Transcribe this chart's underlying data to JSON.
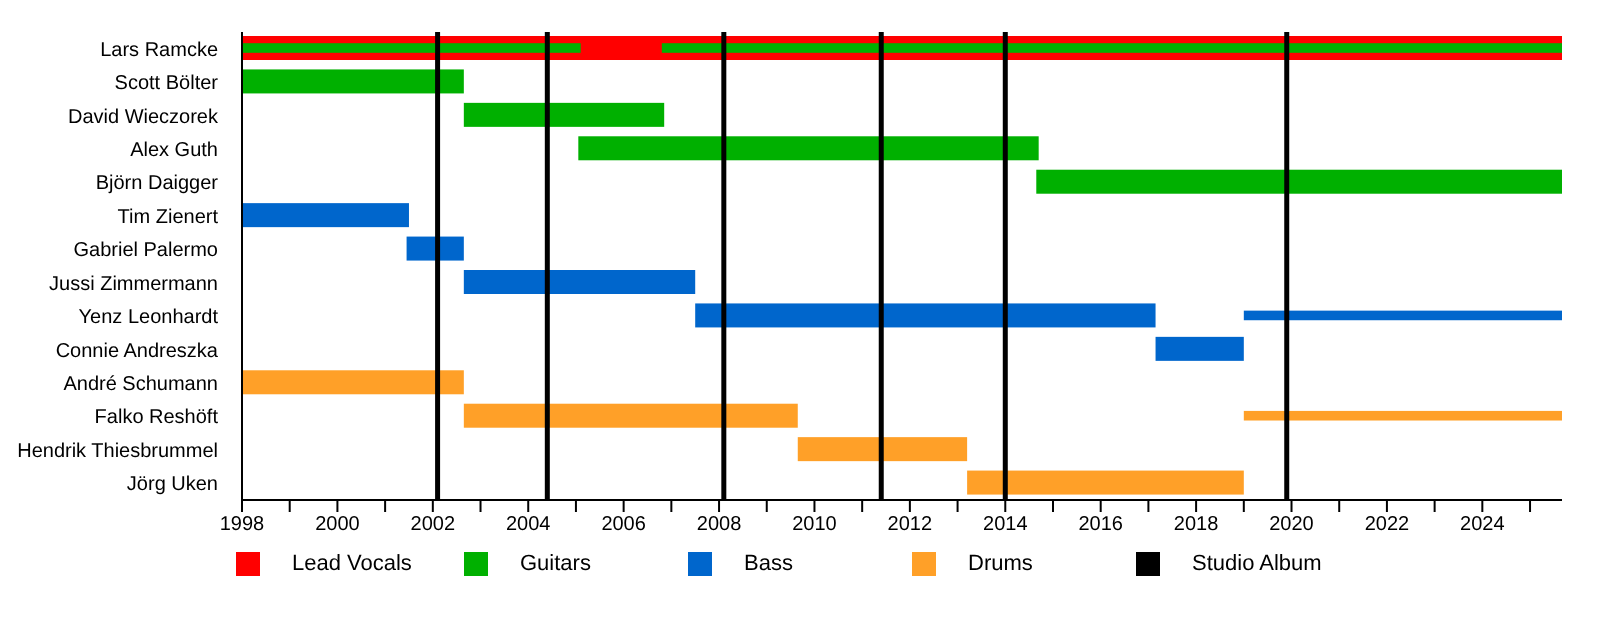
{
  "chart_data": {
    "type": "bar",
    "orientation": "horizontal",
    "categories": [
      "Lars Ramcke",
      "Scott Bölter",
      "David Wieczorek",
      "Alex Guth",
      "Björn Daigger",
      "Tim Zienert",
      "Gabriel Palermo",
      "Jussi Zimmermann",
      "Yenz Leonhardt",
      "Connie Andreszka",
      "André Schumann",
      "Falko Reshöft",
      "Hendrik Thiesbrummel",
      "Jörg Uken"
    ],
    "series": [
      {
        "name": "Lead Vocals",
        "color": "#ff0000",
        "base": [
          1998,
          null,
          null,
          null,
          null,
          null,
          null,
          null,
          null,
          null,
          null,
          null,
          null,
          null
        ],
        "values": [
          27.67,
          null,
          null,
          null,
          null,
          null,
          null,
          null,
          null,
          null,
          null,
          null,
          null,
          null
        ]
      },
      {
        "name": "Guitars",
        "color": "#00b000",
        "base": [
          1998,
          1998,
          2002.65,
          2005.05,
          2014.65,
          null,
          null,
          null,
          null,
          null,
          null,
          null,
          null,
          null
        ],
        "values": [
          7.1,
          4.65,
          4.2,
          9.65,
          11.02,
          null,
          null,
          null,
          null,
          null,
          null,
          null,
          null,
          null
        ]
      },
      {
        "color": "#00b000",
        "base": [
          2006.8,
          null,
          null,
          null,
          null,
          null,
          null,
          null,
          null,
          null,
          null,
          null,
          null,
          null
        ],
        "values": [
          18.87,
          null,
          null,
          null,
          null,
          null,
          null,
          null,
          null,
          null,
          null,
          null,
          null,
          null
        ]
      },
      {
        "name": "Bass",
        "color": "#0066cc",
        "base": [
          null,
          null,
          null,
          null,
          null,
          1998,
          2001.45,
          2002.65,
          2007.5,
          2017.15,
          null,
          null,
          null,
          null
        ],
        "values": [
          null,
          null,
          null,
          null,
          null,
          3.5,
          1.2,
          4.85,
          9.65,
          1.85,
          null,
          null,
          null,
          null
        ]
      },
      {
        "color": "#0066cc",
        "base": [
          null,
          null,
          null,
          null,
          null,
          null,
          null,
          null,
          2019,
          null,
          null,
          null,
          null,
          null
        ],
        "values": [
          null,
          null,
          null,
          null,
          null,
          null,
          null,
          null,
          6.67,
          null,
          null,
          null,
          null,
          null
        ]
      },
      {
        "name": "Drums",
        "color": "#ffa028",
        "base": [
          null,
          null,
          null,
          null,
          null,
          null,
          null,
          null,
          null,
          null,
          1998,
          2002.65,
          2009.65,
          2013.2
        ],
        "values": [
          null,
          null,
          null,
          null,
          null,
          null,
          null,
          null,
          null,
          null,
          4.65,
          7,
          3.55,
          5.8
        ]
      },
      {
        "color": "#ffa028",
        "base": [
          null,
          null,
          null,
          null,
          null,
          null,
          null,
          null,
          null,
          null,
          null,
          2019,
          null,
          null
        ],
        "values": [
          null,
          null,
          null,
          null,
          null,
          null,
          null,
          null,
          null,
          null,
          null,
          6.67,
          null,
          null
        ]
      }
    ],
    "ref_lines": [
      {
        "axis": "x",
        "value": 2002.1,
        "label": "Studio Album",
        "color": "#000000"
      },
      {
        "axis": "x",
        "value": 2004.4,
        "color": "#000000"
      },
      {
        "axis": "x",
        "value": 2008.1,
        "color": "#000000"
      },
      {
        "axis": "x",
        "value": 2011.4,
        "color": "#000000"
      },
      {
        "axis": "x",
        "value": 2014,
        "color": "#000000"
      },
      {
        "axis": "x",
        "value": 2019.9,
        "color": "#000000"
      }
    ],
    "xlim": [
      1998,
      2025.67
    ],
    "xticks": [
      1998,
      {
        "value": 1999,
        "label": null
      },
      2000,
      {
        "value": 2001,
        "label": null
      },
      2002,
      {
        "value": 2003,
        "label": null
      },
      2004,
      {
        "value": 2005,
        "label": null
      },
      2006,
      {
        "value": 2007,
        "label": null
      },
      2008,
      {
        "value": 2009,
        "label": null
      },
      2010,
      {
        "value": 2011,
        "label": null
      },
      2012,
      {
        "value": 2013,
        "label": null
      },
      2014,
      {
        "value": 2015,
        "label": null
      },
      2016,
      {
        "value": 2017,
        "label": null
      },
      2018,
      {
        "value": 2019,
        "label": null
      },
      2020,
      {
        "value": 2021,
        "label": null
      },
      2022,
      {
        "value": 2023,
        "label": null
      },
      2024,
      {
        "value": 2025,
        "label": null
      }
    ],
    "legend": "bottom"
  }
}
